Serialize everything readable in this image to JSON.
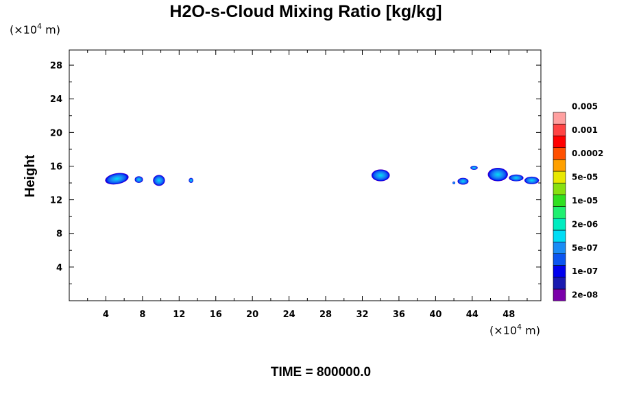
{
  "chart_data": {
    "type": "heatmap",
    "title": "H2O-s-Cloud Mixing Ratio [kg/kg]",
    "ylabel": "Height",
    "x_unit_prefix": "(×10",
    "x_unit_exp": "4",
    "x_unit_suffix": " m)",
    "y_unit_prefix": "(×10",
    "y_unit_exp": "4",
    "y_unit_suffix": " m)",
    "xlim": [
      0,
      51.5
    ],
    "ylim": [
      0,
      29.8
    ],
    "xticks": [
      4,
      8,
      12,
      16,
      20,
      24,
      28,
      32,
      36,
      40,
      44,
      48
    ],
    "yticks": [
      4,
      8,
      12,
      16,
      20,
      24,
      28
    ],
    "footer": "TIME = 800000.0",
    "colorbar": {
      "colors": [
        "#7b00aa",
        "#1a1ab0",
        "#0000ee",
        "#0b55f0",
        "#1a8cf5",
        "#00ddf5",
        "#00ecc0",
        "#20f070",
        "#30e020",
        "#88e010",
        "#e8e800",
        "#ffa000",
        "#ff5000",
        "#ff0000",
        "#ff4444",
        "#ffa0a0"
      ],
      "labels": [
        "2e-08",
        "1e-07",
        "5e-07",
        "2e-06",
        "1e-05",
        "5e-05",
        "0.0002",
        "0.001",
        "0.005"
      ]
    },
    "clouds": [
      {
        "x": 5.2,
        "y": 14.5,
        "w": 2.6,
        "h": 1.3,
        "tilt": -10
      },
      {
        "x": 7.6,
        "y": 14.4,
        "w": 0.9,
        "h": 0.8,
        "tilt": 0
      },
      {
        "x": 9.8,
        "y": 14.3,
        "w": 1.3,
        "h": 1.3,
        "tilt": 0
      },
      {
        "x": 13.3,
        "y": 14.3,
        "w": 0.5,
        "h": 0.6,
        "tilt": 0
      },
      {
        "x": 34.0,
        "y": 14.9,
        "w": 2.0,
        "h": 1.4,
        "tilt": 0
      },
      {
        "x": 42.0,
        "y": 14.0,
        "w": 0.3,
        "h": 0.3,
        "tilt": 0
      },
      {
        "x": 43.0,
        "y": 14.2,
        "w": 1.2,
        "h": 0.8,
        "tilt": 0
      },
      {
        "x": 44.2,
        "y": 15.8,
        "w": 0.8,
        "h": 0.5,
        "tilt": 0
      },
      {
        "x": 46.8,
        "y": 15.0,
        "w": 2.2,
        "h": 1.6,
        "tilt": 0
      },
      {
        "x": 48.8,
        "y": 14.6,
        "w": 1.6,
        "h": 0.8,
        "tilt": 0
      },
      {
        "x": 50.5,
        "y": 14.3,
        "w": 1.6,
        "h": 0.9,
        "tilt": 0
      }
    ]
  }
}
